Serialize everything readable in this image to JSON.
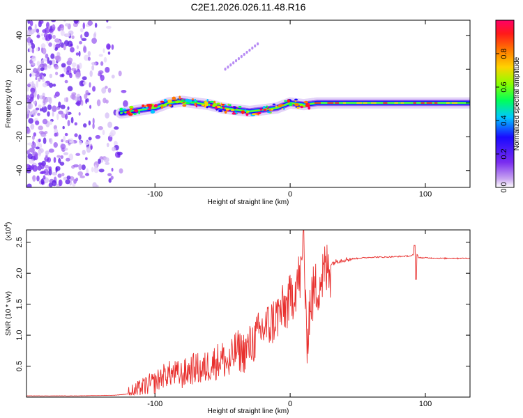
{
  "title": "C2E1.2026.026.11.48.R16",
  "chart_data": [
    {
      "type": "heatmap",
      "name": "spectrogram",
      "xlabel": "Height of straight line (km)",
      "ylabel": "Frequency (Hz)",
      "xlim": [
        -195,
        133
      ],
      "ylim": [
        -50,
        49
      ],
      "xticks": [
        -100,
        0,
        100
      ],
      "yticks": [
        -40,
        -20,
        0,
        20,
        40
      ],
      "xtick_labels": [
        "-100",
        "0",
        "100"
      ],
      "ytick_labels": [
        "-40",
        "-20",
        "0",
        "20",
        "40"
      ],
      "colorbar": {
        "label": "Normalized spectral amplitude",
        "range": [
          0,
          1
        ],
        "ticks": [
          0.0,
          0.2,
          0.4,
          0.6,
          0.8
        ],
        "tick_labels": [
          "0.0",
          "0.2",
          "0.4",
          "0.6",
          "0.8"
        ],
        "colors": [
          "#ffffff",
          "#c9a6f0",
          "#7a2cf0",
          "#1a0aff",
          "#00c8ff",
          "#00ff5a",
          "#8cff00",
          "#ffd200",
          "#ff7a00",
          "#ff1a1a",
          "#ff0066"
        ]
      },
      "signal_trace": {
        "x": [
          -125,
          -110,
          -100,
          -90,
          -80,
          -70,
          -60,
          -50,
          -40,
          -30,
          -20,
          -10,
          0,
          10,
          20,
          40,
          133
        ],
        "freq": [
          -6,
          -4,
          -3,
          0,
          1,
          0,
          -1,
          -3,
          -4,
          -5,
          -4,
          -3,
          0,
          -1,
          0,
          0,
          0
        ]
      },
      "faint_streak": {
        "x": [
          -48,
          -24
        ],
        "freq": [
          20,
          35
        ]
      }
    },
    {
      "type": "line",
      "name": "snr",
      "title": "",
      "xlabel": "Height of straight line (km)",
      "ylabel": "SNR (10 * v/v)",
      "multiplier_label": "(x10",
      "multiplier_exponent": "4",
      "multiplier_close": ")",
      "xlim": [
        -195,
        133
      ],
      "ylim": [
        0.0,
        2.7
      ],
      "xticks": [
        -100,
        0,
        100
      ],
      "yticks": [
        0.5,
        1.0,
        1.5,
        2.0,
        2.5
      ],
      "xtick_labels": [
        "-100",
        "0",
        "100"
      ],
      "ytick_labels": [
        "0.5",
        "1.0",
        "1.5",
        "2.0",
        "2.5"
      ],
      "color": "#e8302e",
      "series": [
        {
          "name": "SNR",
          "x": [
            -195,
            -160,
            -130,
            -120,
            -115,
            -110,
            -105,
            -100,
            -95,
            -90,
            -85,
            -80,
            -75,
            -70,
            -65,
            -60,
            -55,
            -50,
            -45,
            -40,
            -35,
            -30,
            -25,
            -20,
            -15,
            -10,
            -5,
            0,
            5,
            8,
            10,
            12,
            15,
            20,
            25,
            30,
            35,
            40,
            50,
            60,
            70,
            80,
            90,
            93,
            95,
            100,
            110,
            120,
            133
          ],
          "y": [
            0.02,
            0.02,
            0.03,
            0.05,
            0.1,
            0.16,
            0.22,
            0.25,
            0.35,
            0.4,
            0.4,
            0.38,
            0.45,
            0.5,
            0.45,
            0.55,
            0.6,
            0.65,
            0.55,
            0.8,
            0.75,
            0.85,
            1.0,
            1.15,
            1.2,
            1.35,
            1.45,
            1.6,
            1.9,
            2.0,
            2.6,
            0.9,
            1.6,
            1.85,
            2.05,
            2.15,
            2.2,
            2.22,
            2.24,
            2.26,
            2.26,
            2.27,
            2.28,
            2.35,
            2.25,
            2.25,
            2.24,
            2.24,
            2.24
          ]
        }
      ]
    }
  ]
}
